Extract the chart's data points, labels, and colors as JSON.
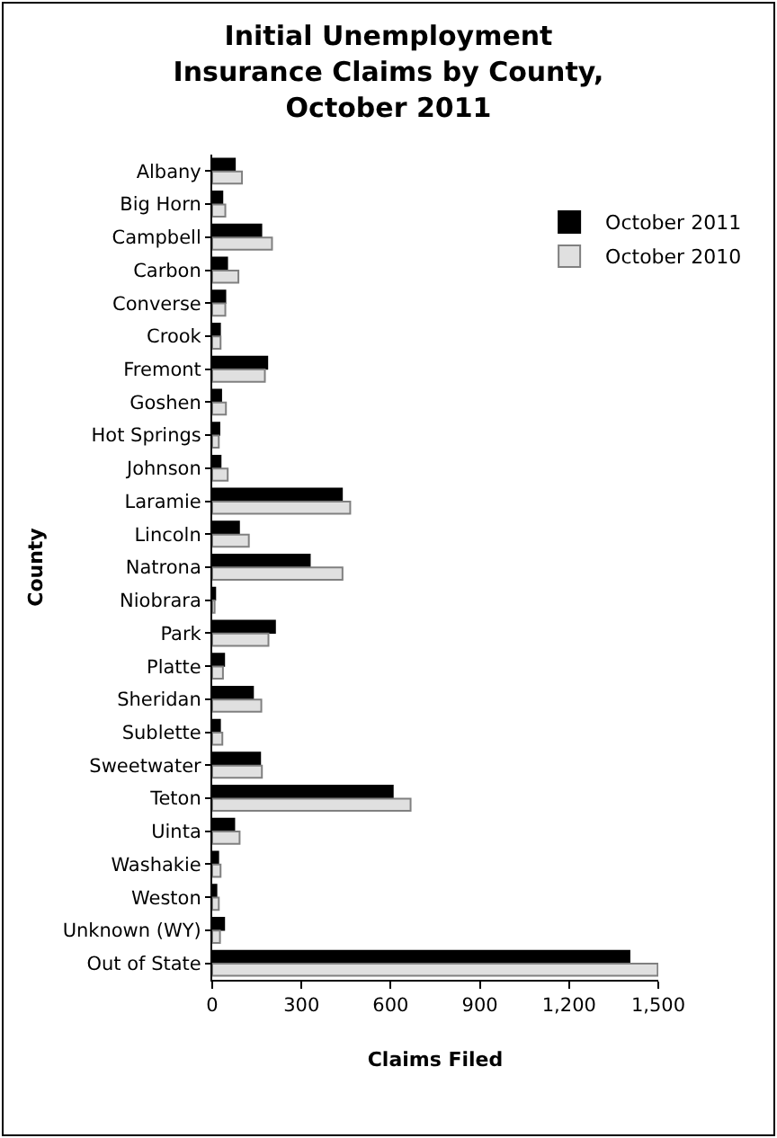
{
  "chart_data": {
    "type": "bar",
    "orientation": "horizontal",
    "title": "Initial Unemployment Insurance Claims by County, October 2011",
    "xlabel": "Claims Filed",
    "ylabel": "County",
    "categories": [
      "Albany",
      "Big Horn",
      "Campbell",
      "Carbon",
      "Converse",
      "Crook",
      "Fremont",
      "Goshen",
      "Hot Springs",
      "Johnson",
      "Laramie",
      "Lincoln",
      "Natrona",
      "Niobrara",
      "Park",
      "Platte",
      "Sheridan",
      "Sublette",
      "Sweetwater",
      "Teton",
      "Uinta",
      "Washakie",
      "Weston",
      "Unknown (WY)",
      "Out of State"
    ],
    "series": [
      {
        "name": "October 2011",
        "color": "#000000",
        "values": [
          76,
          34,
          165,
          50,
          44,
          26,
          185,
          30,
          24,
          28,
          436,
          90,
          328,
          10,
          211,
          40,
          137,
          26,
          161,
          607,
          74,
          20,
          14,
          40,
          1403
        ]
      },
      {
        "name": "October 2010",
        "color": "#e0e0e0",
        "values": [
          100,
          44,
          201,
          88,
          44,
          28,
          177,
          46,
          22,
          52,
          464,
          123,
          438,
          8,
          189,
          36,
          165,
          34,
          167,
          667,
          92,
          28,
          22,
          26,
          1498
        ]
      }
    ],
    "xlim": [
      0,
      1500
    ],
    "xticks": [
      0,
      300,
      600,
      900,
      {
        "value": 1200,
        "label": "1,200"
      },
      {
        "value": 1500,
        "label": "1,500"
      }
    ],
    "grid": false,
    "legend": "top right"
  }
}
